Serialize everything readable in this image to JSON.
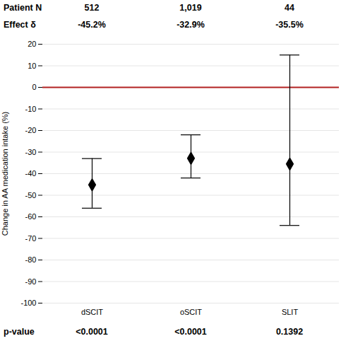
{
  "chart_data": {
    "type": "errorbar",
    "categories": [
      "dSCIT",
      "oSCIT",
      "SLIT"
    ],
    "values": [
      -45.2,
      -32.9,
      -35.5
    ],
    "ci_upper": [
      -33,
      -22,
      15
    ],
    "ci_lower": [
      -56,
      -42,
      -64
    ],
    "ylabel": "Change in AA medication intake (%)",
    "ylim": [
      -100,
      20
    ],
    "yticks": [
      20,
      10,
      0,
      -10,
      -20,
      -30,
      -40,
      -50,
      -60,
      -70,
      -80,
      -90,
      -100
    ],
    "grid": true,
    "marker": "diamond",
    "reference_line": {
      "value": 0,
      "color": "#b22222"
    },
    "header_rows": [
      {
        "label": "Patient N",
        "values": [
          "512",
          "1,019",
          "44"
        ]
      },
      {
        "label": "Effect δ",
        "values": [
          "-45.2%",
          "-32.9%",
          "-35.5%"
        ]
      }
    ],
    "footer_rows": [
      {
        "label": "p-value",
        "values": [
          "<0.0001",
          "<0.0001",
          "0.1392"
        ]
      }
    ]
  }
}
